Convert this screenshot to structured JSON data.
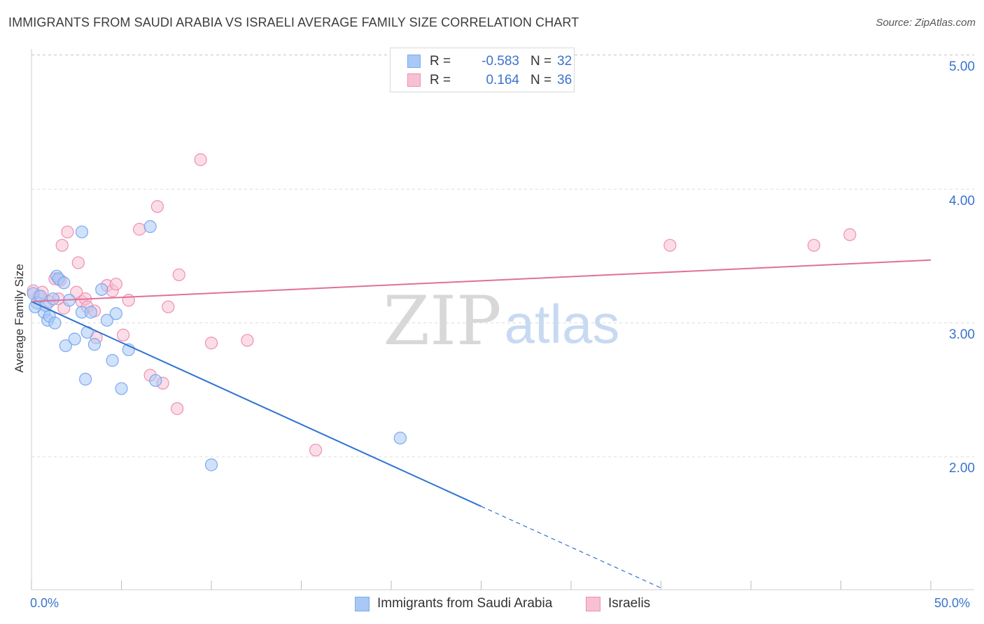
{
  "title": "IMMIGRANTS FROM SAUDI ARABIA VS ISRAELI AVERAGE FAMILY SIZE CORRELATION CHART",
  "source": "Source: ZipAtlas.com",
  "colors": {
    "blue": "#7aaaf0",
    "blue_fill": "#a9c8f5",
    "blue_line": "#2f74d0",
    "pink": "#ef8fb0",
    "pink_fill": "#f7c1d3",
    "pink_line": "#e0709a",
    "axis_text": "#3b73cc",
    "grid": "#dcdcdc"
  },
  "legend_top": {
    "rows": [
      {
        "r_label": "R =",
        "r_value": "-0.583",
        "n_label": "N =",
        "n_value": "32"
      },
      {
        "r_label": "R =",
        "r_value": "0.164",
        "n_label": "N =",
        "n_value": "36"
      }
    ]
  },
  "legend_bottom": [
    {
      "label": "Immigrants from Saudi Arabia"
    },
    {
      "label": "Israelis"
    }
  ],
  "watermark": {
    "zip": "ZIP",
    "atlas": "atlas"
  },
  "chart_data": {
    "type": "scatter",
    "title": "IMMIGRANTS FROM SAUDI ARABIA VS ISRAELI AVERAGE FAMILY SIZE CORRELATION CHART",
    "xlabel": "",
    "ylabel": "Average Family Size",
    "xlim": [
      0,
      50
    ],
    "ylim": [
      1.0,
      5.1
    ],
    "x_tick_labels": [
      "0.0%",
      "50.0%"
    ],
    "y_ticks": [
      2.0,
      3.0,
      4.0,
      5.0
    ],
    "y_tick_labels": [
      "2.00",
      "3.00",
      "4.00",
      "5.00"
    ],
    "series": [
      {
        "name": "Immigrants from Saudi Arabia",
        "r": -0.583,
        "n": 32,
        "points": [
          [
            0.1,
            3.22
          ],
          [
            0.3,
            3.15
          ],
          [
            0.5,
            3.2
          ],
          [
            0.7,
            3.08
          ],
          [
            0.8,
            3.13
          ],
          [
            0.9,
            3.02
          ],
          [
            1.0,
            3.05
          ],
          [
            1.2,
            3.18
          ],
          [
            1.3,
            3.0
          ],
          [
            1.4,
            3.35
          ],
          [
            1.5,
            3.33
          ],
          [
            1.8,
            3.3
          ],
          [
            1.9,
            2.83
          ],
          [
            2.1,
            3.17
          ],
          [
            2.4,
            2.88
          ],
          [
            2.8,
            3.08
          ],
          [
            3.0,
            2.58
          ],
          [
            3.1,
            2.93
          ],
          [
            3.3,
            3.08
          ],
          [
            3.5,
            2.84
          ],
          [
            3.9,
            3.25
          ],
          [
            4.2,
            3.02
          ],
          [
            2.8,
            3.68
          ],
          [
            4.5,
            2.72
          ],
          [
            4.7,
            3.07
          ],
          [
            5.0,
            2.51
          ],
          [
            5.4,
            2.8
          ],
          [
            6.6,
            3.72
          ],
          [
            6.9,
            2.57
          ],
          [
            10.0,
            1.94
          ],
          [
            20.5,
            2.14
          ],
          [
            0.2,
            3.12
          ]
        ],
        "trend": {
          "x0": 0,
          "y0": 3.16,
          "x1": 25,
          "y1": 1.63,
          "dashed_to_x": 35,
          "dashed_to_y": 1.02
        }
      },
      {
        "name": "Israelis",
        "r": 0.164,
        "n": 36,
        "points": [
          [
            0.1,
            3.24
          ],
          [
            0.4,
            3.2
          ],
          [
            0.6,
            3.23
          ],
          [
            1.0,
            3.16
          ],
          [
            1.3,
            3.33
          ],
          [
            1.5,
            3.18
          ],
          [
            1.8,
            3.11
          ],
          [
            1.6,
            3.32
          ],
          [
            1.7,
            3.58
          ],
          [
            2.0,
            3.68
          ],
          [
            2.5,
            3.23
          ],
          [
            2.6,
            3.45
          ],
          [
            2.8,
            3.16
          ],
          [
            3.0,
            3.18
          ],
          [
            3.1,
            3.12
          ],
          [
            3.5,
            3.09
          ],
          [
            3.6,
            2.89
          ],
          [
            4.2,
            3.28
          ],
          [
            4.5,
            3.24
          ],
          [
            4.7,
            3.29
          ],
          [
            5.1,
            2.91
          ],
          [
            5.4,
            3.17
          ],
          [
            6.0,
            3.7
          ],
          [
            6.6,
            2.61
          ],
          [
            7.0,
            3.87
          ],
          [
            7.3,
            2.55
          ],
          [
            7.6,
            3.12
          ],
          [
            8.1,
            2.36
          ],
          [
            8.2,
            3.36
          ],
          [
            9.4,
            4.22
          ],
          [
            10.0,
            2.85
          ],
          [
            12.0,
            2.87
          ],
          [
            15.8,
            2.05
          ],
          [
            35.5,
            3.58
          ],
          [
            43.5,
            3.58
          ],
          [
            45.5,
            3.66
          ]
        ],
        "trend": {
          "x0": 0,
          "y0": 3.16,
          "x1": 50,
          "y1": 3.47
        }
      }
    ]
  }
}
